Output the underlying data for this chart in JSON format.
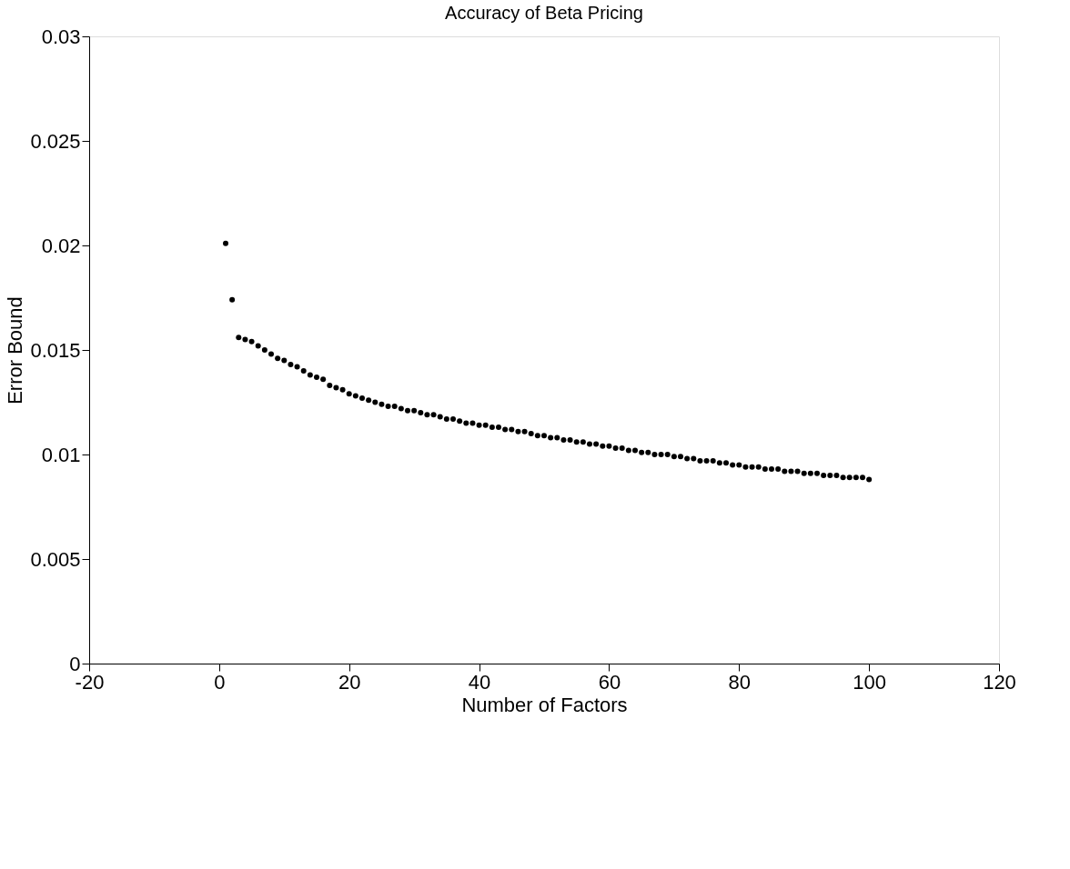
{
  "chart_data": {
    "type": "scatter",
    "title": "Accuracy of Beta Pricing",
    "xlabel": "Number of Factors",
    "ylabel": "Error Bound",
    "x": [
      1,
      2,
      3,
      4,
      5,
      6,
      7,
      8,
      9,
      10,
      11,
      12,
      13,
      14,
      15,
      16,
      17,
      18,
      19,
      20,
      21,
      22,
      23,
      24,
      25,
      26,
      27,
      28,
      29,
      30,
      31,
      32,
      33,
      34,
      35,
      36,
      37,
      38,
      39,
      40,
      41,
      42,
      43,
      44,
      45,
      46,
      47,
      48,
      49,
      50,
      51,
      52,
      53,
      54,
      55,
      56,
      57,
      58,
      59,
      60,
      61,
      62,
      63,
      64,
      65,
      66,
      67,
      68,
      69,
      70,
      71,
      72,
      73,
      74,
      75,
      76,
      77,
      78,
      79,
      80,
      81,
      82,
      83,
      84,
      85,
      86,
      87,
      88,
      89,
      90,
      91,
      92,
      93,
      94,
      95,
      96,
      97,
      98,
      99,
      100
    ],
    "series": [
      {
        "color": "#000000",
        "values": [
          0.0201,
          0.0174,
          0.0156,
          0.0155,
          0.0154,
          0.0152,
          0.015,
          0.0148,
          0.0146,
          0.0145,
          0.0143,
          0.0142,
          0.014,
          0.0138,
          0.0137,
          0.0136,
          0.0133,
          0.0132,
          0.0131,
          0.0129,
          0.0128,
          0.0127,
          0.0126,
          0.0125,
          0.0124,
          0.0123,
          0.0123,
          0.0122,
          0.0121,
          0.0121,
          0.012,
          0.0119,
          0.0119,
          0.0118,
          0.0117,
          0.0117,
          0.0116,
          0.0115,
          0.0115,
          0.0114,
          0.0114,
          0.0113,
          0.0113,
          0.0112,
          0.0112,
          0.0111,
          0.0111,
          0.011,
          0.0109,
          0.0109,
          0.0108,
          0.0108,
          0.0107,
          0.0107,
          0.0106,
          0.0106,
          0.0105,
          0.0105,
          0.0104,
          0.0104,
          0.0103,
          0.0103,
          0.0102,
          0.0102,
          0.0101,
          0.0101,
          0.01,
          0.01,
          0.01,
          0.0099,
          0.0099,
          0.0098,
          0.0098,
          0.0097,
          0.0097,
          0.0097,
          0.0096,
          0.0096,
          0.0095,
          0.0095,
          0.0094,
          0.0094,
          0.0094,
          0.0093,
          0.0093,
          0.0093,
          0.0092,
          0.0092,
          0.0092,
          0.0091,
          0.0091,
          0.0091,
          0.009,
          0.009,
          0.009,
          0.0089,
          0.0089,
          0.0089,
          0.0089,
          0.0088
        ]
      }
    ],
    "xlim": [
      -20,
      120
    ],
    "xticks": [
      -20,
      0,
      20,
      40,
      60,
      80,
      100,
      120
    ],
    "ylim": [
      0,
      0.03
    ],
    "yticks": [
      0,
      0.005,
      0.01,
      0.015,
      0.02,
      0.025,
      0.03
    ],
    "marker": "circle",
    "grid": false,
    "legend": false
  }
}
